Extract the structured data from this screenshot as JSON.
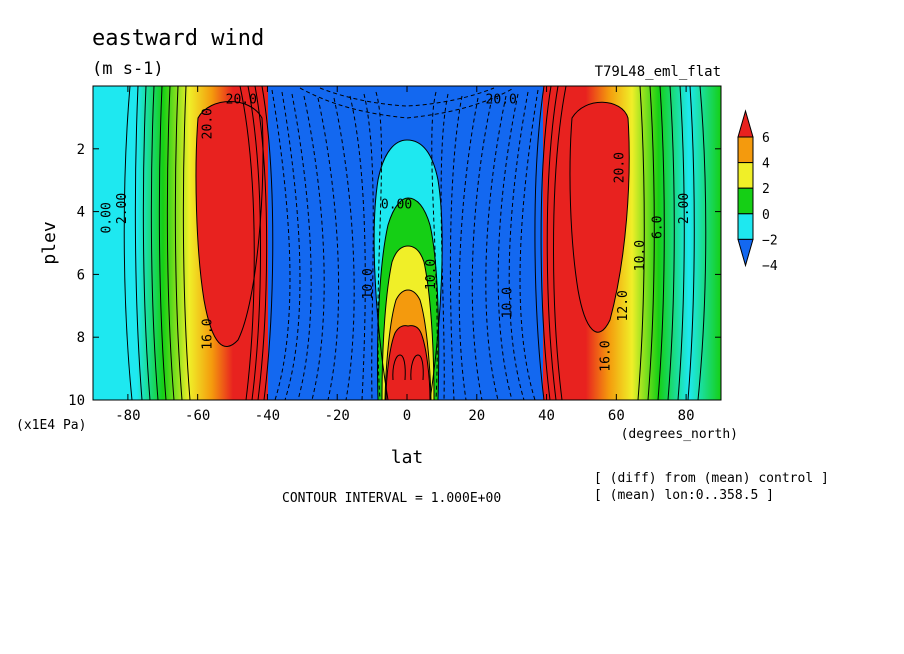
{
  "chart_data": {
    "type": "heatmap",
    "title": "eastward wind",
    "units": "(m s-1)",
    "run_label": "T79L48_eml_flat",
    "xlabel": "lat",
    "x_units": "(degrees_north)",
    "ylabel": "plev",
    "y_units": "(x1E4 Pa)",
    "xlim": [
      -90,
      90
    ],
    "ylim": [
      0,
      10
    ],
    "y_inverted": true,
    "x_ticks": [
      -80,
      -60,
      -40,
      -20,
      0,
      20,
      40,
      60,
      80
    ],
    "y_ticks": [
      2,
      4,
      6,
      8,
      10
    ],
    "contour_interval_text": "CONTOUR INTERVAL = 1.000E+00",
    "notes": [
      "[ (diff) from (mean) control ]",
      "[ (mean) lon:0..358.5 ]"
    ],
    "colorbar": {
      "levels": [
        6,
        4,
        2,
        0,
        -2,
        -4
      ],
      "colors": [
        "#e8221f",
        "#f49a0d",
        "#f0ef28",
        "#15cf15",
        "#1ee8f0",
        "#1368f0"
      ],
      "extend": "both"
    },
    "contour_labels": [
      {
        "text": "20.0",
        "lat": -47.5,
        "plev": 0.55
      },
      {
        "text": "20.0",
        "lat": 27,
        "plev": 0.55
      },
      {
        "text": "20.0",
        "lat": -56,
        "plev": 1.2
      },
      {
        "text": "20.0",
        "lat": 62,
        "plev": 2.6
      },
      {
        "text": "0.00",
        "lat": -85,
        "plev": 4.2
      },
      {
        "text": "2.00",
        "lat": -80.5,
        "plev": 3.9
      },
      {
        "text": "0.00",
        "lat": -3,
        "plev": 3.9
      },
      {
        "text": "2.00",
        "lat": 80.5,
        "plev": 3.9
      },
      {
        "text": "6.0",
        "lat": 73,
        "plev": 4.5
      },
      {
        "text": "10.0",
        "lat": 68,
        "plev": 5.4
      },
      {
        "text": "12.0",
        "lat": 63,
        "plev": 7.0
      },
      {
        "text": "16.0",
        "lat": 58,
        "plev": 8.6
      },
      {
        "text": "16.0",
        "lat": -56,
        "plev": 7.9
      },
      {
        "text": "10.0",
        "lat": 8,
        "plev": 6.0
      },
      {
        "text": "10.0",
        "lat": -10,
        "plev": 6.3
      },
      {
        "text": "10.0",
        "lat": 30,
        "plev": 6.9
      }
    ]
  }
}
